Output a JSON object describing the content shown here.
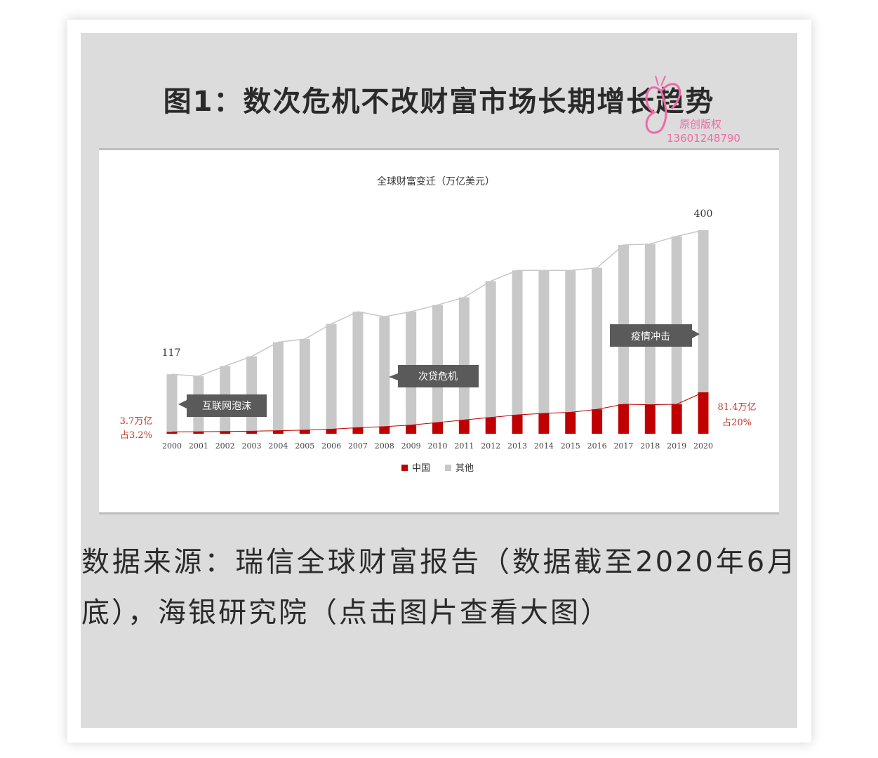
{
  "figure_title": "图1：数次危机不改财富市场长期增长趋势",
  "watermark": {
    "line1": "原创版权",
    "line2": "13601248790"
  },
  "caption": "数据来源：瑞信全球财富报告（数据截至2020年6月底），海银研究院（点击图片查看大图）",
  "colors": {
    "china": "#c00000",
    "other": "#c8c8c8",
    "callout": "#5a5a5a",
    "annotation_red": "#c0392b"
  },
  "chart_data": {
    "type": "bar",
    "stacked": true,
    "title": "全球财富变迁（万亿美元）",
    "categories": [
      "2000",
      "2001",
      "2002",
      "2003",
      "2004",
      "2005",
      "2006",
      "2007",
      "2008",
      "2009",
      "2010",
      "2011",
      "2012",
      "2013",
      "2014",
      "2015",
      "2016",
      "2017",
      "2018",
      "2019",
      "2020"
    ],
    "series": [
      {
        "name": "中国",
        "values": [
          3.7,
          4,
          4.5,
          5,
          6,
          7,
          9,
          12,
          14,
          17,
          22,
          27,
          32,
          37,
          40,
          42,
          48,
          58,
          57,
          58,
          81.4
        ]
      },
      {
        "name": "其他",
        "values": [
          113.3,
          109,
          128.5,
          147,
          174,
          179,
          207,
          228,
          216,
          223,
          231,
          241,
          268,
          284,
          281,
          279,
          278,
          313,
          316,
          330,
          318.6
        ]
      }
    ],
    "data_labels": {
      "first_total": "117",
      "last_total": "400"
    },
    "annotations": {
      "dotcom": "互联网泡沫",
      "subprime": "次贷危机",
      "pandemic": "疫情冲击",
      "start_value": "3.7万亿",
      "start_share": "占3.2%",
      "end_value": "81.4万亿",
      "end_share": "占20%"
    },
    "ylim": [
      0,
      400
    ],
    "grid": false,
    "legend": "bottom"
  }
}
